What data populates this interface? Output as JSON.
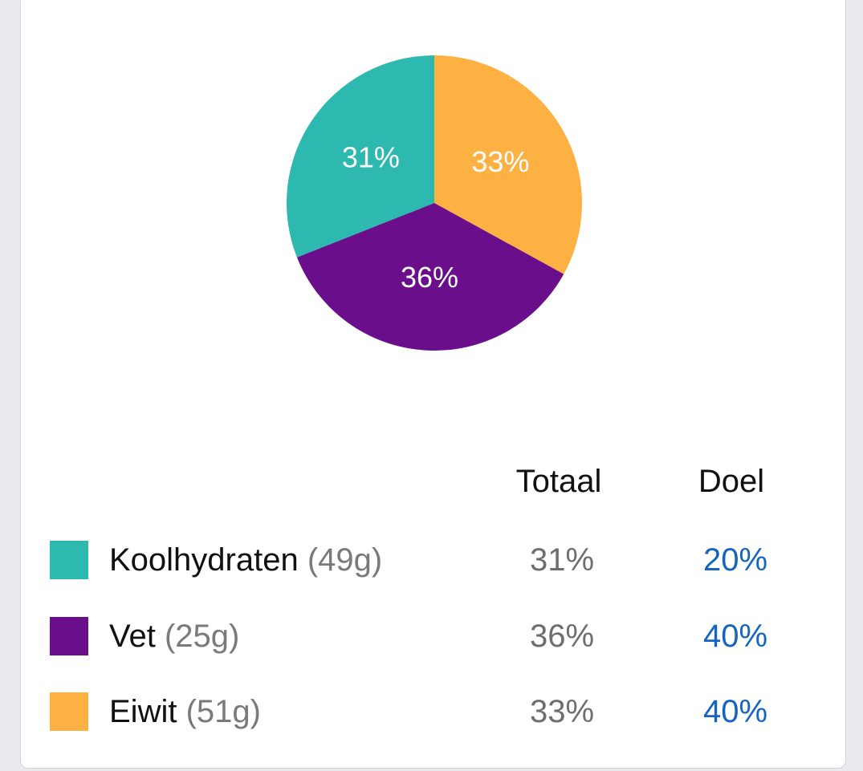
{
  "colors": {
    "carbs": "#2db8b0",
    "fat": "#6a0e8c",
    "protein": "#fdb143",
    "goal_text": "#1565c0",
    "muted_text": "#6e6e6e"
  },
  "chart_data": {
    "type": "pie",
    "slices": [
      {
        "label": "Eiwit",
        "value": 33,
        "display": "33%",
        "color": "#fdb143"
      },
      {
        "label": "Vet",
        "value": 36,
        "display": "36%",
        "color": "#6a0e8c"
      },
      {
        "label": "Koolhydraten",
        "value": 31,
        "display": "31%",
        "color": "#2db8b0"
      }
    ]
  },
  "table": {
    "headers": {
      "total": "Totaal",
      "goal": "Doel"
    },
    "rows": [
      {
        "name": "Koolhydraten",
        "grams": "(49g)",
        "total": "31%",
        "goal": "20%",
        "color": "#2db8b0"
      },
      {
        "name": "Vet",
        "grams": "(25g)",
        "total": "36%",
        "goal": "40%",
        "color": "#6a0e8c"
      },
      {
        "name": "Eiwit",
        "grams": "(51g)",
        "total": "33%",
        "goal": "40%",
        "color": "#fdb143"
      }
    ]
  }
}
